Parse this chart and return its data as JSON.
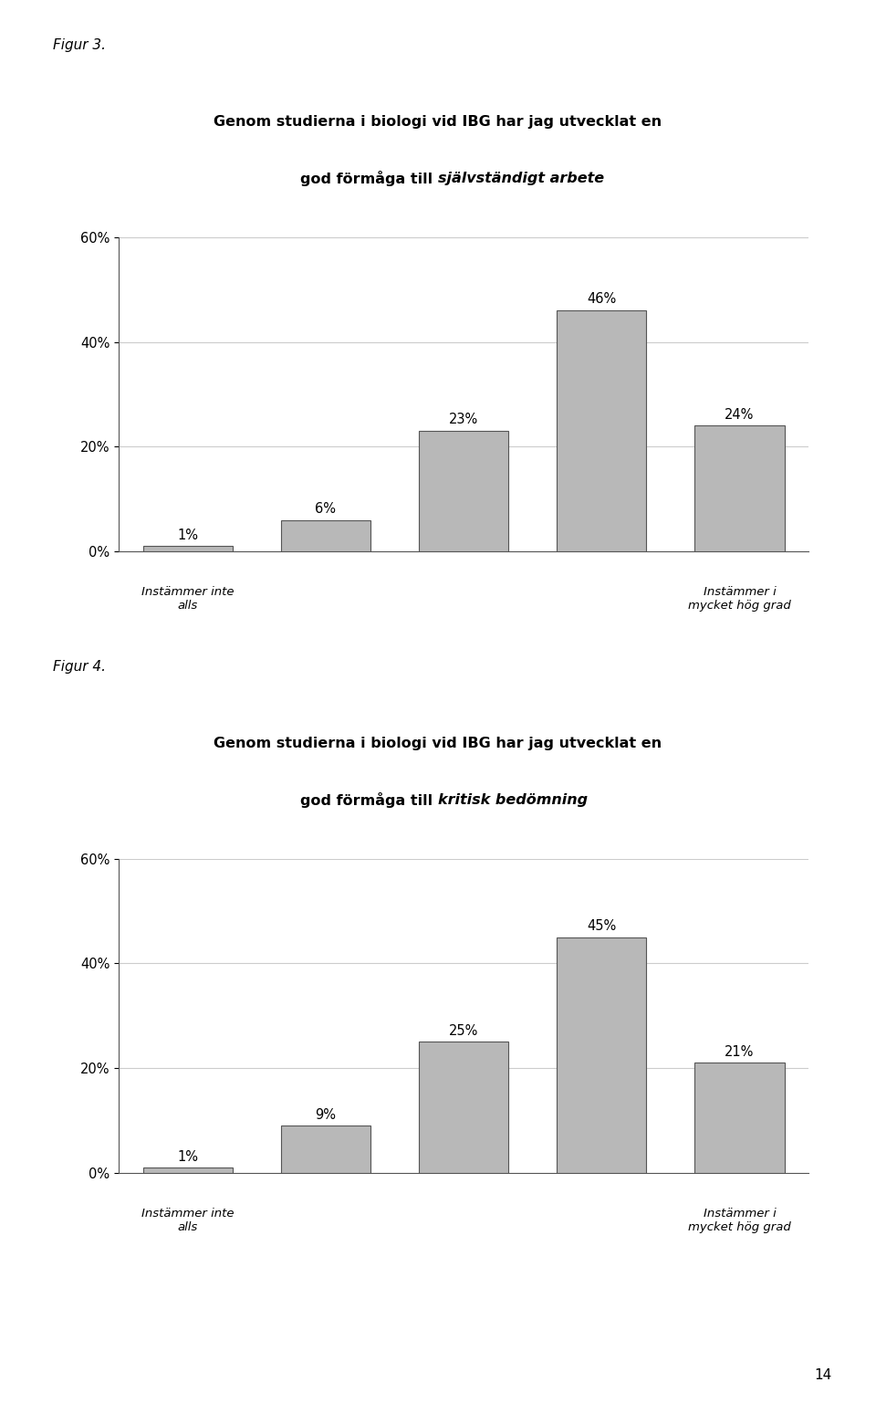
{
  "fig3": {
    "title_line1": "Genom studierna i biologi vid IBG har jag utvecklat en",
    "title_line2_normal": "god förmåga till ",
    "title_line2_italic": "självständigt arbete",
    "values": [
      1,
      6,
      23,
      46,
      24
    ],
    "bar_color": "#b8b8b8",
    "bar_edge_color": "#555555",
    "ylim": [
      0,
      60
    ],
    "yticks": [
      0,
      20,
      40,
      60
    ],
    "yticklabels": [
      "0%",
      "20%",
      "40%",
      "60%"
    ],
    "xlabel_left": "Instämmer inte\nalls",
    "xlabel_right": "Instämmer i\nmycket hög grad",
    "value_labels": [
      "1%",
      "6%",
      "23%",
      "46%",
      "24%"
    ]
  },
  "fig4": {
    "title_line1": "Genom studierna i biologi vid IBG har jag utvecklat en",
    "title_line2_normal": "god förmåga till ",
    "title_line2_italic": "kritisk bedömning",
    "values": [
      1,
      9,
      25,
      45,
      21
    ],
    "bar_color": "#b8b8b8",
    "bar_edge_color": "#555555",
    "ylim": [
      0,
      60
    ],
    "yticks": [
      0,
      20,
      40,
      60
    ],
    "yticklabels": [
      "0%",
      "20%",
      "40%",
      "60%"
    ],
    "xlabel_left": "Instämmer inte\nalls",
    "xlabel_right": "Instämmer i\nmycket hög grad",
    "value_labels": [
      "1%",
      "9%",
      "25%",
      "45%",
      "21%"
    ]
  },
  "background_color": "#ffffff",
  "box_facecolor": "#ffffff",
  "box_edge_color": "#333333",
  "figur3_label": "Figur 3.",
  "figur4_label": "Figur 4.",
  "page_number": "14"
}
